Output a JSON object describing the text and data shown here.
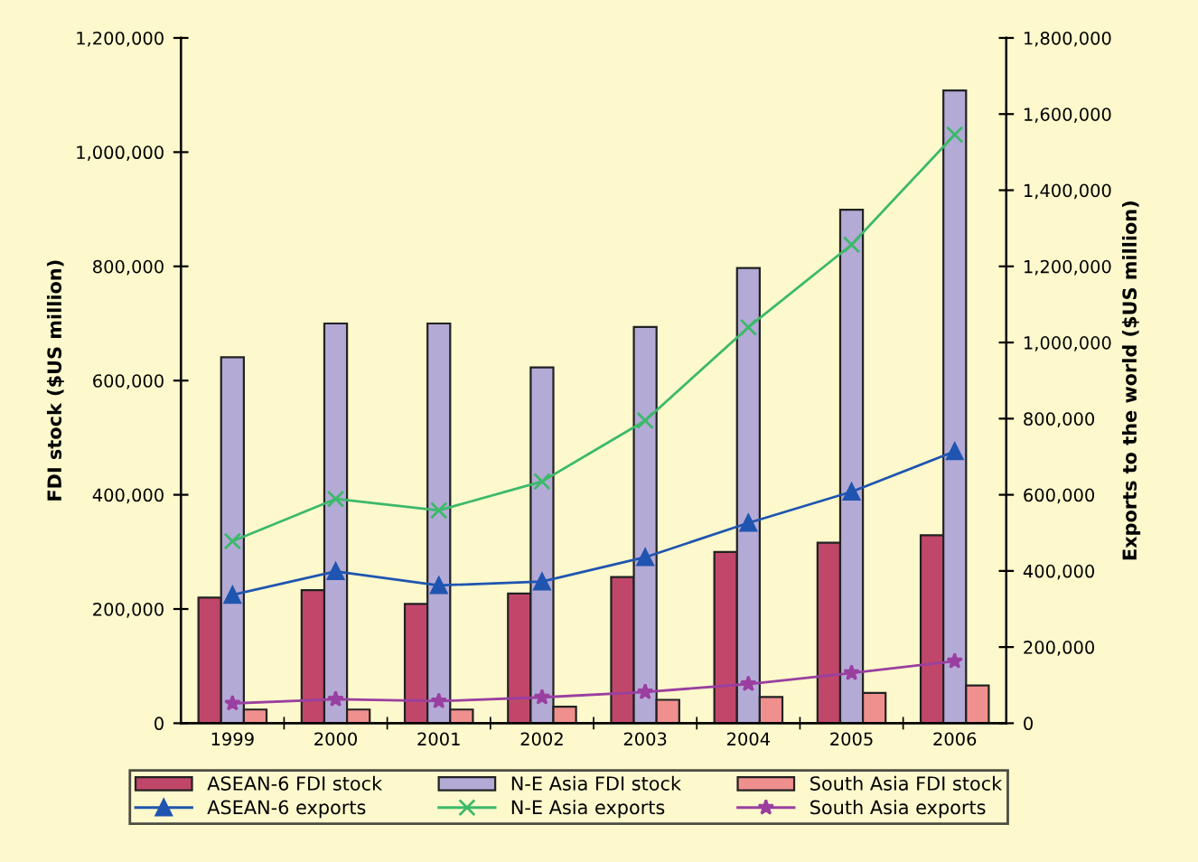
{
  "chart_data": {
    "type": "bar",
    "ylabel": "FDI stock ($US million)",
    "y2label": "Exports to the world ($US million)",
    "categories": [
      "1999",
      "2000",
      "2001",
      "2002",
      "2003",
      "2004",
      "2005",
      "2006"
    ],
    "series": [
      {
        "name": "ASEAN-6 FDI stock",
        "color": "#c0476a",
        "values": [
          220000,
          233000,
          209000,
          227000,
          256000,
          300000,
          316000,
          329000
        ]
      },
      {
        "name": "N-E Asia FDI stock",
        "color": "#b4aad6",
        "values": [
          641000,
          700000,
          700000,
          623000,
          694000,
          797000,
          899000,
          1108000
        ]
      },
      {
        "name": "South Asia FDI stock",
        "color": "#f0908e",
        "values": [
          24000,
          24000,
          24000,
          29000,
          41000,
          46000,
          53000,
          66000
        ]
      },
      {
        "name": "ASEAN-6 exports",
        "type": "line",
        "axis": "y2",
        "color": "#1f55b0",
        "marker": "triangle",
        "values": [
          337000,
          399000,
          362000,
          372000,
          436000,
          526000,
          608000,
          714000
        ]
      },
      {
        "name": "N-E Asia exports",
        "type": "line",
        "axis": "y2",
        "color": "#3cb96a",
        "marker": "cross",
        "values": [
          478000,
          589000,
          559000,
          635000,
          795000,
          1040000,
          1257000,
          1546000
        ]
      },
      {
        "name": "South Asia exports",
        "type": "line",
        "axis": "y2",
        "color": "#9a3fa0",
        "marker": "star",
        "values": [
          52000,
          63000,
          58000,
          68000,
          82000,
          103000,
          132000,
          163000
        ]
      }
    ],
    "ylim": [
      0,
      1200000
    ],
    "yticks": [
      {
        "value": 0,
        "label": "0"
      },
      {
        "value": 200000,
        "label": "200,000"
      },
      {
        "value": 400000,
        "label": "400,000"
      },
      {
        "value": 600000,
        "label": "600,000"
      },
      {
        "value": 800000,
        "label": "800,000"
      },
      {
        "value": 1000000,
        "label": "1,000,000"
      },
      {
        "value": 1200000,
        "label": "1,200,000"
      }
    ],
    "y2lim": [
      0,
      1800000
    ],
    "y2ticks": [
      {
        "value": 0,
        "label": "0"
      },
      {
        "value": 200000,
        "label": "200,000"
      },
      {
        "value": 400000,
        "label": "400,000"
      },
      {
        "value": 600000,
        "label": "600,000"
      },
      {
        "value": 800000,
        "label": "800,000"
      },
      {
        "value": 1000000,
        "label": "1,000,000"
      },
      {
        "value": 1200000,
        "label": "1,200,000"
      },
      {
        "value": 1400000,
        "label": "1,400,000"
      },
      {
        "value": 1600000,
        "label": "1,600,000"
      },
      {
        "value": 1800000,
        "label": "1,800,000"
      }
    ],
    "grid": false,
    "legend": "bottom",
    "line_style": "solid"
  }
}
